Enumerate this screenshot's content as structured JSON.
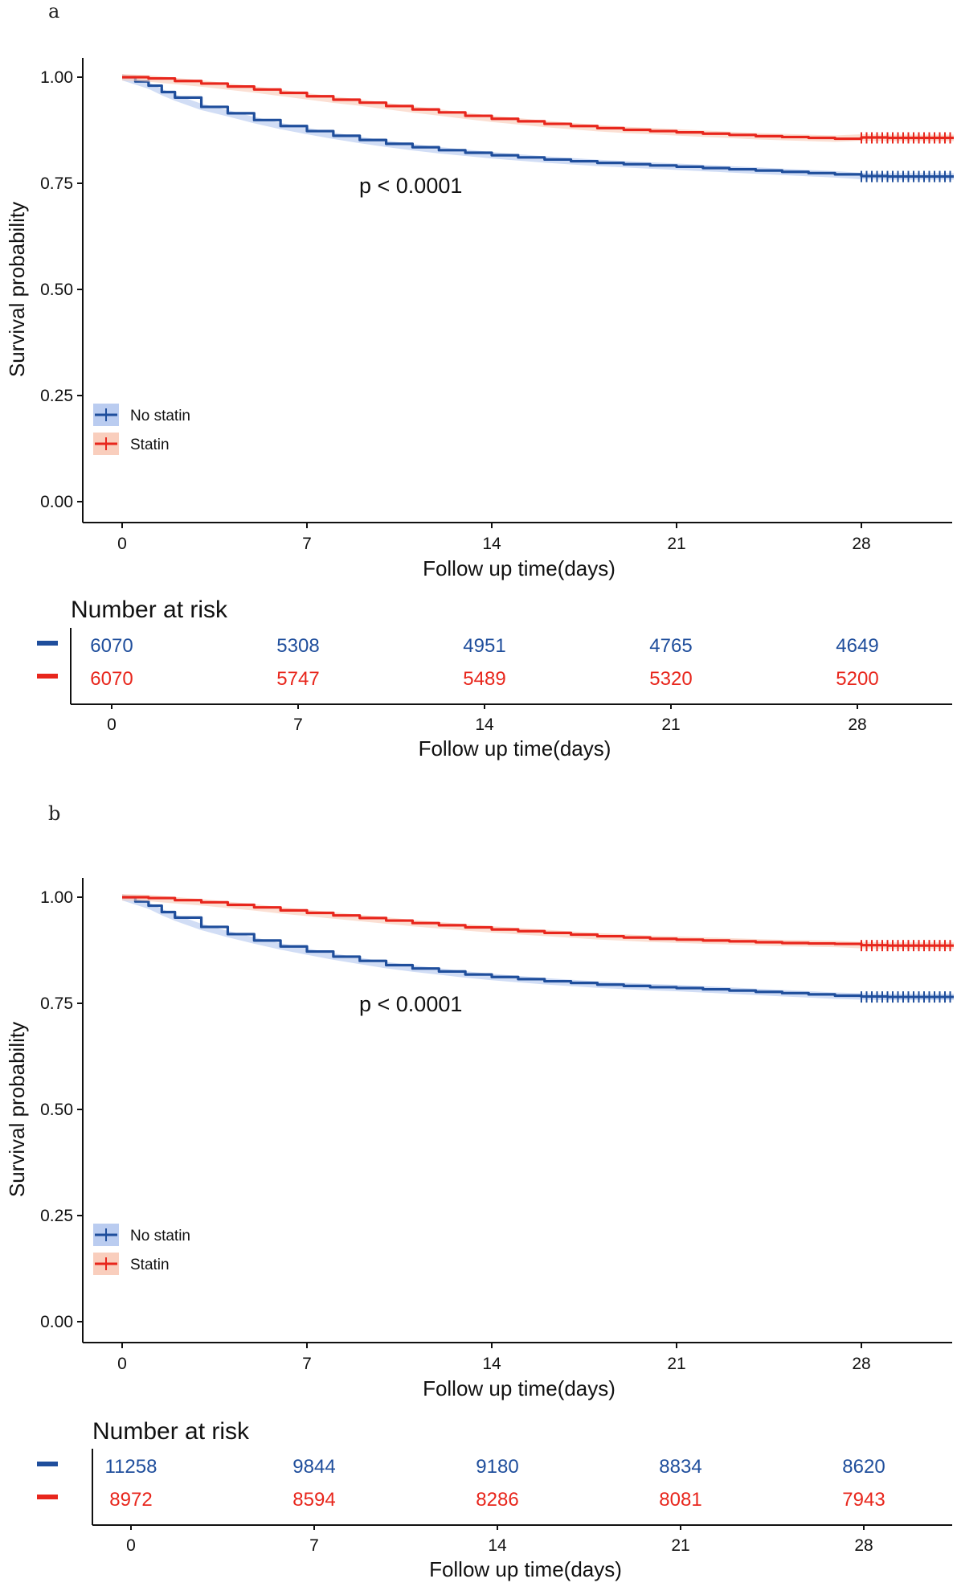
{
  "chart_data": [
    {
      "panel_label": "a",
      "type": "line",
      "title": "",
      "xlabel": "Follow up time(days)",
      "ylabel": "Survival probability",
      "xlim": [
        0,
        31.5
      ],
      "ylim": [
        0,
        1.05
      ],
      "x_ticks": [
        "0",
        "7",
        "14",
        "21",
        "28"
      ],
      "y_ticks": [
        "0.00",
        "0.25",
        "0.50",
        "0.75",
        "1.00"
      ],
      "p_value": "p < 0.0001",
      "grid": false,
      "legend_position": "bottom-left",
      "series": [
        {
          "name": "No statin",
          "color": "#1f4e9c",
          "band_color": "#b3c6ee",
          "x": [
            0,
            0.5,
            1,
            1.5,
            2,
            3,
            4,
            5,
            6,
            7,
            8,
            9,
            10,
            11,
            12,
            13,
            14,
            15,
            16,
            17,
            18,
            19,
            20,
            21,
            22,
            23,
            24,
            25,
            26,
            27,
            28,
            29,
            30,
            31.5
          ],
          "y": [
            1.0,
            0.99,
            0.98,
            0.965,
            0.952,
            0.93,
            0.915,
            0.899,
            0.885,
            0.873,
            0.862,
            0.852,
            0.843,
            0.835,
            0.828,
            0.822,
            0.816,
            0.811,
            0.806,
            0.802,
            0.798,
            0.795,
            0.792,
            0.789,
            0.786,
            0.783,
            0.78,
            0.777,
            0.774,
            0.771,
            0.767,
            0.766,
            0.766,
            0.766
          ],
          "censor_from": 28
        },
        {
          "name": "Statin",
          "color": "#e8261c",
          "band_color": "#f8c9b6",
          "x": [
            0,
            1,
            2,
            3,
            4,
            5,
            6,
            7,
            8,
            9,
            10,
            11,
            12,
            13,
            14,
            15,
            16,
            17,
            18,
            19,
            20,
            21,
            22,
            23,
            24,
            25,
            26,
            27,
            28,
            29,
            30,
            31.5
          ],
          "y": [
            1.0,
            0.997,
            0.991,
            0.985,
            0.978,
            0.971,
            0.963,
            0.955,
            0.947,
            0.94,
            0.932,
            0.924,
            0.917,
            0.909,
            0.902,
            0.896,
            0.89,
            0.885,
            0.88,
            0.876,
            0.873,
            0.87,
            0.867,
            0.864,
            0.861,
            0.859,
            0.857,
            0.855,
            0.858,
            0.857,
            0.857,
            0.857
          ],
          "censor_from": 28
        }
      ],
      "risk_table": {
        "title": "Number at risk",
        "xlabel": "Follow up time(days)",
        "x_ticks": [
          "0",
          "7",
          "14",
          "21",
          "28"
        ],
        "rows": [
          {
            "name": "No statin",
            "color": "#1f4e9c",
            "values": [
              "6070",
              "5308",
              "4951",
              "4765",
              "4649"
            ]
          },
          {
            "name": "Statin",
            "color": "#e8261c",
            "values": [
              "6070",
              "5747",
              "5489",
              "5320",
              "5200"
            ]
          }
        ]
      }
    },
    {
      "panel_label": "b",
      "type": "line",
      "title": "",
      "xlabel": "Follow up time(days)",
      "ylabel": "Survival probability",
      "xlim": [
        0,
        31.5
      ],
      "ylim": [
        0,
        1.05
      ],
      "x_ticks": [
        "0",
        "7",
        "14",
        "21",
        "28"
      ],
      "y_ticks": [
        "0.00",
        "0.25",
        "0.50",
        "0.75",
        "1.00"
      ],
      "p_value": "p < 0.0001",
      "grid": false,
      "legend_position": "bottom-left",
      "series": [
        {
          "name": "No statin",
          "color": "#1f4e9c",
          "band_color": "#b3c6ee",
          "x": [
            0,
            0.5,
            1,
            1.5,
            2,
            3,
            4,
            5,
            6,
            7,
            8,
            9,
            10,
            11,
            12,
            13,
            14,
            15,
            16,
            17,
            18,
            19,
            20,
            21,
            22,
            23,
            24,
            25,
            26,
            27,
            28,
            29,
            30,
            31.5
          ],
          "y": [
            1.0,
            0.99,
            0.98,
            0.965,
            0.952,
            0.93,
            0.913,
            0.898,
            0.884,
            0.872,
            0.86,
            0.85,
            0.84,
            0.832,
            0.825,
            0.818,
            0.812,
            0.807,
            0.802,
            0.798,
            0.794,
            0.791,
            0.788,
            0.786,
            0.783,
            0.78,
            0.777,
            0.774,
            0.771,
            0.768,
            0.766,
            0.765,
            0.765,
            0.765
          ],
          "censor_from": 28
        },
        {
          "name": "Statin",
          "color": "#e8261c",
          "band_color": "#f8c9b6",
          "x": [
            0,
            1,
            2,
            3,
            4,
            5,
            6,
            7,
            8,
            9,
            10,
            11,
            12,
            13,
            14,
            15,
            16,
            17,
            18,
            19,
            20,
            21,
            22,
            23,
            24,
            25,
            26,
            27,
            28,
            29,
            30,
            31.5
          ],
          "y": [
            1.0,
            0.998,
            0.993,
            0.988,
            0.982,
            0.976,
            0.969,
            0.963,
            0.957,
            0.951,
            0.945,
            0.939,
            0.934,
            0.929,
            0.924,
            0.92,
            0.916,
            0.912,
            0.908,
            0.905,
            0.902,
            0.9,
            0.898,
            0.896,
            0.894,
            0.892,
            0.891,
            0.89,
            0.887,
            0.886,
            0.886,
            0.886
          ],
          "censor_from": 28
        }
      ],
      "risk_table": {
        "title": "Number at risk",
        "xlabel": "Follow up time(days)",
        "x_ticks": [
          "0",
          "7",
          "14",
          "21",
          "28"
        ],
        "rows": [
          {
            "name": "No statin",
            "color": "#1f4e9c",
            "values": [
              "11258",
              "9844",
              "9180",
              "8834",
              "8620"
            ]
          },
          {
            "name": "Statin",
            "color": "#e8261c",
            "values": [
              "8972",
              "8594",
              "8286",
              "8081",
              "7943"
            ]
          }
        ]
      }
    }
  ]
}
